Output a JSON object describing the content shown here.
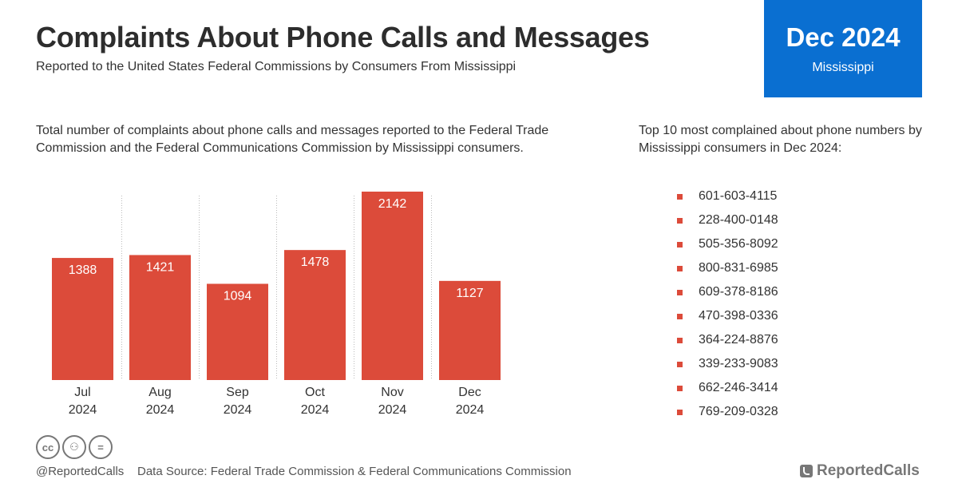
{
  "header": {
    "title": "Complaints About Phone Calls and Messages",
    "subtitle": "Reported to the United States Federal Commissions by Consumers From Mississippi"
  },
  "badge": {
    "period": "Dec 2024",
    "region": "Mississippi",
    "color": "#0a6fd1"
  },
  "chart_description": "Total number of complaints about phone calls and messages reported to the Federal Trade Commission and the Federal Communications Commission by Mississippi consumers.",
  "list_description": "Top 10 most complained about phone numbers by Mississippi consumers in Dec 2024:",
  "chart_data": {
    "type": "bar",
    "categories": [
      "Jul 2024",
      "Aug 2024",
      "Sep 2024",
      "Oct 2024",
      "Nov 2024",
      "Dec 2024"
    ],
    "category_lines": [
      [
        "Jul",
        "2024"
      ],
      [
        "Aug",
        "2024"
      ],
      [
        "Sep",
        "2024"
      ],
      [
        "Oct",
        "2024"
      ],
      [
        "Nov",
        "2024"
      ],
      [
        "Dec",
        "2024"
      ]
    ],
    "values": [
      1388,
      1421,
      1094,
      1478,
      2142,
      1127
    ],
    "ylim": [
      0,
      2142
    ],
    "data_labels": true,
    "grid": "vertical dotted separators",
    "bar_color": "#dc4b3a"
  },
  "phone_numbers": [
    "601-603-4115",
    "228-400-0148",
    "505-356-8092",
    "800-831-6985",
    "609-378-8186",
    "470-398-0336",
    "364-224-8876",
    "339-233-9083",
    "662-246-3414",
    "769-209-0328"
  ],
  "footer": {
    "license_icons": [
      {
        "icon": "cc-icon",
        "glyph": "cc"
      },
      {
        "icon": "attribution-icon",
        "glyph": "⚇"
      },
      {
        "icon": "no-derivatives-icon",
        "glyph": "="
      }
    ],
    "handle": "@ReportedCalls",
    "source": "Data Source: Federal Trade Commission & Federal Communications Commission",
    "brand": "ReportedCalls"
  }
}
